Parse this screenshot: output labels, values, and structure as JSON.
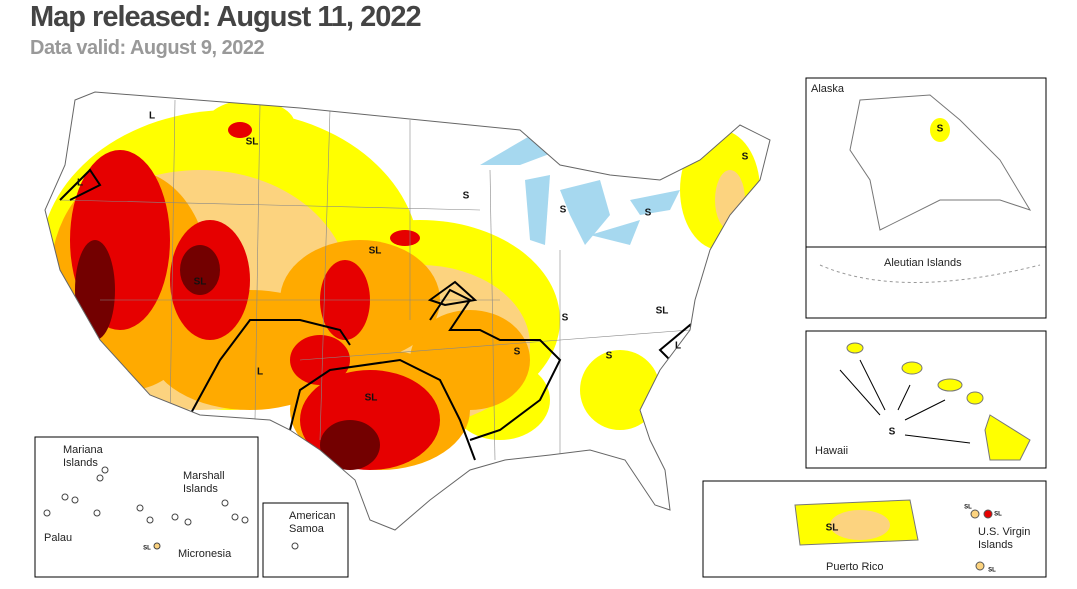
{
  "header": {
    "title": "Map released: August 11, 2022",
    "subtitle": "Data valid: August 9, 2022"
  },
  "map": {
    "impact_labels": [
      "L",
      "SL",
      "L",
      "S",
      "S",
      "S",
      "S",
      "SL",
      "SL",
      "S",
      "SL",
      "S",
      "L",
      "S",
      "L",
      "SL"
    ]
  },
  "insets": {
    "alaska": {
      "title": "Alaska",
      "labels": [
        "S"
      ]
    },
    "aleutian": {
      "title": "Aleutian Islands"
    },
    "hawaii": {
      "title": "Hawaii",
      "labels": [
        "S"
      ]
    },
    "puerto_rico": {
      "title": "Puerto Rico",
      "labels": [
        "SL"
      ]
    },
    "virgin_islands": {
      "title": "U.S. Virgin Islands",
      "labels": [
        "SL",
        "SL",
        "SL"
      ]
    },
    "pacific": {
      "mariana": "Mariana Islands",
      "marshall": "Marshall Islands",
      "palau": "Palau",
      "micronesia": "Micronesia",
      "labels": [
        "SL"
      ]
    },
    "samoa": {
      "title": "American Samoa"
    }
  }
}
